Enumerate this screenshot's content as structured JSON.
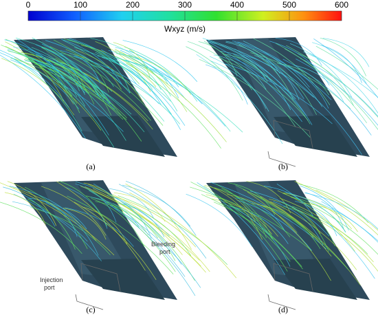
{
  "colorbar": {
    "label": "Wxyz (m/s)",
    "lim": [
      0,
      600
    ],
    "ticks": [
      0,
      100,
      200,
      300,
      400,
      500,
      600
    ]
  },
  "panels": [
    {
      "label": "(a)"
    },
    {
      "label": "(b)"
    },
    {
      "label": "(c)",
      "annotations": [
        "Bleeding",
        "port",
        "Injection",
        "port"
      ]
    },
    {
      "label": "(d)"
    }
  ]
}
